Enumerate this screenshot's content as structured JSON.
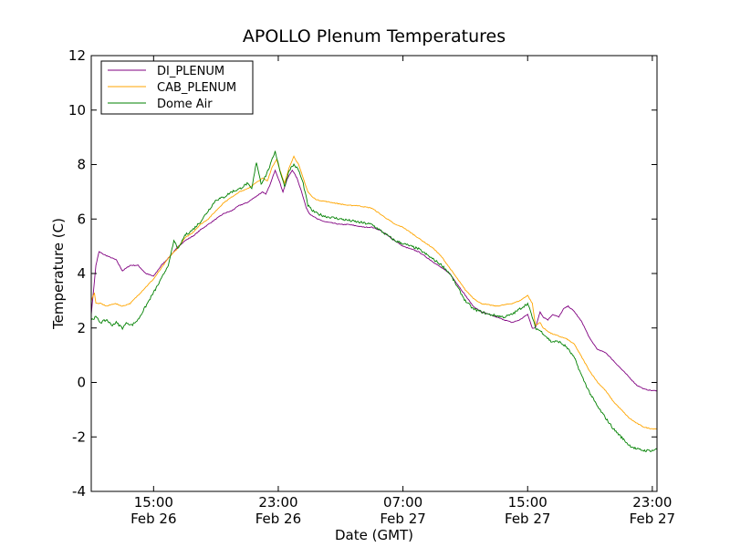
{
  "chart_data": {
    "type": "line",
    "title": "APOLLO Plenum Temperatures",
    "xlabel": "Date (GMT)",
    "ylabel": "Temperature (C)",
    "xlim": [
      11.0,
      47.3
    ],
    "ylim": [
      -4,
      12
    ],
    "yticks": [
      -4,
      -2,
      0,
      2,
      4,
      6,
      8,
      10,
      12
    ],
    "xticks": [
      {
        "x": 15,
        "time": "15:00",
        "date": "Feb 26"
      },
      {
        "x": 23,
        "time": "23:00",
        "date": "Feb 26"
      },
      {
        "x": 31,
        "time": "07:00",
        "date": "Feb 27"
      },
      {
        "x": 39,
        "time": "15:00",
        "date": "Feb 27"
      },
      {
        "x": 47,
        "time": "23:00",
        "date": "Feb 27"
      }
    ],
    "legend_position": "top-left",
    "series": [
      {
        "name": "DI_PLENUM",
        "color": "#800080",
        "points": [
          [
            11.0,
            2.5
          ],
          [
            11.3,
            4.3
          ],
          [
            11.5,
            4.8
          ],
          [
            11.8,
            4.7
          ],
          [
            12.2,
            4.6
          ],
          [
            12.6,
            4.5
          ],
          [
            13.0,
            4.1
          ],
          [
            13.5,
            4.3
          ],
          [
            14.0,
            4.3
          ],
          [
            14.5,
            4.0
          ],
          [
            15.0,
            3.9
          ],
          [
            15.5,
            4.3
          ],
          [
            16.0,
            4.6
          ],
          [
            16.6,
            5.0
          ],
          [
            17.0,
            5.2
          ],
          [
            17.6,
            5.4
          ],
          [
            18.0,
            5.6
          ],
          [
            18.5,
            5.8
          ],
          [
            19.0,
            6.0
          ],
          [
            19.5,
            6.2
          ],
          [
            20.0,
            6.3
          ],
          [
            20.5,
            6.5
          ],
          [
            21.0,
            6.6
          ],
          [
            21.5,
            6.8
          ],
          [
            22.0,
            7.0
          ],
          [
            22.2,
            6.9
          ],
          [
            22.5,
            7.3
          ],
          [
            22.8,
            7.8
          ],
          [
            23.0,
            7.5
          ],
          [
            23.3,
            7.0
          ],
          [
            23.6,
            7.5
          ],
          [
            23.9,
            7.8
          ],
          [
            24.2,
            7.5
          ],
          [
            24.5,
            7.0
          ],
          [
            24.8,
            6.4
          ],
          [
            25.0,
            6.2
          ],
          [
            25.5,
            6.0
          ],
          [
            26.0,
            5.9
          ],
          [
            26.5,
            5.85
          ],
          [
            27.0,
            5.8
          ],
          [
            27.5,
            5.8
          ],
          [
            28.0,
            5.75
          ],
          [
            28.5,
            5.7
          ],
          [
            29.0,
            5.7
          ],
          [
            29.5,
            5.6
          ],
          [
            30.0,
            5.4
          ],
          [
            30.5,
            5.2
          ],
          [
            31.0,
            5.0
          ],
          [
            31.5,
            4.9
          ],
          [
            32.0,
            4.8
          ],
          [
            32.5,
            4.6
          ],
          [
            33.0,
            4.4
          ],
          [
            33.5,
            4.2
          ],
          [
            34.0,
            4.0
          ],
          [
            34.5,
            3.6
          ],
          [
            35.0,
            3.2
          ],
          [
            35.5,
            2.8
          ],
          [
            36.0,
            2.6
          ],
          [
            36.5,
            2.5
          ],
          [
            37.0,
            2.4
          ],
          [
            37.5,
            2.3
          ],
          [
            38.0,
            2.2
          ],
          [
            38.5,
            2.3
          ],
          [
            39.0,
            2.5
          ],
          [
            39.3,
            2.0
          ],
          [
            39.5,
            2.0
          ],
          [
            39.8,
            2.6
          ],
          [
            40.0,
            2.4
          ],
          [
            40.3,
            2.3
          ],
          [
            40.6,
            2.5
          ],
          [
            41.0,
            2.4
          ],
          [
            41.3,
            2.7
          ],
          [
            41.6,
            2.8
          ],
          [
            42.0,
            2.6
          ],
          [
            42.5,
            2.2
          ],
          [
            43.0,
            1.6
          ],
          [
            43.5,
            1.2
          ],
          [
            44.0,
            1.1
          ],
          [
            44.5,
            0.8
          ],
          [
            45.0,
            0.5
          ],
          [
            45.5,
            0.2
          ],
          [
            46.0,
            -0.1
          ],
          [
            46.5,
            -0.25
          ],
          [
            47.0,
            -0.3
          ],
          [
            47.3,
            -0.3
          ]
        ]
      },
      {
        "name": "CAB_PLENUM",
        "color": "#FFA500",
        "points": [
          [
            11.0,
            3.0
          ],
          [
            11.2,
            3.3
          ],
          [
            11.3,
            2.9
          ],
          [
            11.6,
            2.9
          ],
          [
            12.0,
            2.8
          ],
          [
            12.5,
            2.9
          ],
          [
            13.0,
            2.8
          ],
          [
            13.5,
            2.9
          ],
          [
            14.0,
            3.2
          ],
          [
            14.5,
            3.5
          ],
          [
            15.0,
            3.8
          ],
          [
            15.5,
            4.2
          ],
          [
            16.0,
            4.6
          ],
          [
            16.5,
            4.9
          ],
          [
            17.0,
            5.3
          ],
          [
            17.5,
            5.5
          ],
          [
            18.0,
            5.8
          ],
          [
            18.5,
            6.0
          ],
          [
            19.0,
            6.3
          ],
          [
            19.5,
            6.6
          ],
          [
            20.0,
            6.8
          ],
          [
            20.5,
            7.0
          ],
          [
            21.0,
            7.1
          ],
          [
            21.5,
            7.3
          ],
          [
            22.0,
            7.5
          ],
          [
            22.3,
            7.4
          ],
          [
            22.6,
            7.9
          ],
          [
            22.9,
            8.2
          ],
          [
            23.1,
            7.8
          ],
          [
            23.4,
            7.3
          ],
          [
            23.7,
            7.9
          ],
          [
            24.0,
            8.3
          ],
          [
            24.3,
            8.0
          ],
          [
            24.6,
            7.5
          ],
          [
            24.9,
            7.0
          ],
          [
            25.2,
            6.8
          ],
          [
            25.5,
            6.7
          ],
          [
            26.0,
            6.65
          ],
          [
            26.5,
            6.6
          ],
          [
            27.0,
            6.55
          ],
          [
            27.5,
            6.5
          ],
          [
            28.0,
            6.5
          ],
          [
            28.5,
            6.45
          ],
          [
            29.0,
            6.4
          ],
          [
            29.5,
            6.2
          ],
          [
            30.0,
            6.0
          ],
          [
            30.5,
            5.8
          ],
          [
            31.0,
            5.7
          ],
          [
            31.5,
            5.5
          ],
          [
            32.0,
            5.3
          ],
          [
            32.5,
            5.1
          ],
          [
            33.0,
            4.9
          ],
          [
            33.5,
            4.6
          ],
          [
            34.0,
            4.2
          ],
          [
            34.5,
            3.8
          ],
          [
            35.0,
            3.4
          ],
          [
            35.5,
            3.1
          ],
          [
            36.0,
            2.9
          ],
          [
            36.5,
            2.85
          ],
          [
            37.0,
            2.8
          ],
          [
            37.5,
            2.85
          ],
          [
            38.0,
            2.9
          ],
          [
            38.5,
            3.0
          ],
          [
            39.0,
            3.2
          ],
          [
            39.3,
            2.9
          ],
          [
            39.5,
            2.1
          ],
          [
            39.8,
            2.2
          ],
          [
            40.0,
            2.0
          ],
          [
            40.5,
            1.8
          ],
          [
            41.0,
            1.7
          ],
          [
            41.5,
            1.6
          ],
          [
            42.0,
            1.4
          ],
          [
            42.5,
            0.9
          ],
          [
            43.0,
            0.4
          ],
          [
            43.5,
            0.0
          ],
          [
            44.0,
            -0.3
          ],
          [
            44.5,
            -0.7
          ],
          [
            45.0,
            -1.0
          ],
          [
            45.5,
            -1.3
          ],
          [
            46.0,
            -1.5
          ],
          [
            46.5,
            -1.65
          ],
          [
            47.0,
            -1.7
          ],
          [
            47.3,
            -1.7
          ]
        ]
      },
      {
        "name": "Dome Air",
        "color": "#008000",
        "points": [
          [
            11.0,
            2.3
          ],
          [
            11.3,
            2.4
          ],
          [
            11.6,
            2.2
          ],
          [
            12.0,
            2.3
          ],
          [
            12.3,
            2.1
          ],
          [
            12.6,
            2.2
          ],
          [
            13.0,
            2.0
          ],
          [
            13.3,
            2.2
          ],
          [
            13.6,
            2.1
          ],
          [
            14.0,
            2.3
          ],
          [
            14.5,
            2.8
          ],
          [
            15.0,
            3.3
          ],
          [
            15.5,
            3.8
          ],
          [
            16.0,
            4.4
          ],
          [
            16.3,
            5.2
          ],
          [
            16.6,
            4.9
          ],
          [
            17.0,
            5.4
          ],
          [
            17.5,
            5.6
          ],
          [
            18.0,
            5.9
          ],
          [
            18.5,
            6.3
          ],
          [
            19.0,
            6.7
          ],
          [
            19.5,
            6.8
          ],
          [
            20.0,
            7.0
          ],
          [
            20.5,
            7.1
          ],
          [
            21.0,
            7.3
          ],
          [
            21.3,
            7.1
          ],
          [
            21.6,
            8.1
          ],
          [
            21.9,
            7.3
          ],
          [
            22.2,
            7.6
          ],
          [
            22.5,
            8.0
          ],
          [
            22.8,
            8.5
          ],
          [
            23.1,
            7.8
          ],
          [
            23.4,
            7.2
          ],
          [
            23.7,
            7.8
          ],
          [
            24.0,
            8.0
          ],
          [
            24.3,
            7.8
          ],
          [
            24.6,
            7.3
          ],
          [
            24.9,
            6.5
          ],
          [
            25.2,
            6.3
          ],
          [
            25.5,
            6.2
          ],
          [
            26.0,
            6.1
          ],
          [
            26.5,
            6.05
          ],
          [
            27.0,
            6.0
          ],
          [
            27.5,
            5.95
          ],
          [
            28.0,
            5.9
          ],
          [
            28.5,
            5.85
          ],
          [
            29.0,
            5.8
          ],
          [
            29.5,
            5.6
          ],
          [
            30.0,
            5.4
          ],
          [
            30.5,
            5.2
          ],
          [
            31.0,
            5.1
          ],
          [
            31.5,
            5.0
          ],
          [
            32.0,
            4.9
          ],
          [
            32.5,
            4.7
          ],
          [
            33.0,
            4.5
          ],
          [
            33.5,
            4.3
          ],
          [
            34.0,
            4.0
          ],
          [
            34.5,
            3.5
          ],
          [
            35.0,
            3.0
          ],
          [
            35.5,
            2.7
          ],
          [
            36.0,
            2.6
          ],
          [
            36.5,
            2.5
          ],
          [
            37.0,
            2.45
          ],
          [
            37.5,
            2.4
          ],
          [
            38.0,
            2.5
          ],
          [
            38.5,
            2.7
          ],
          [
            39.0,
            2.9
          ],
          [
            39.3,
            2.4
          ],
          [
            39.5,
            2.0
          ],
          [
            39.8,
            1.9
          ],
          [
            40.0,
            1.8
          ],
          [
            40.5,
            1.5
          ],
          [
            41.0,
            1.5
          ],
          [
            41.5,
            1.3
          ],
          [
            42.0,
            0.9
          ],
          [
            42.5,
            0.2
          ],
          [
            43.0,
            -0.4
          ],
          [
            43.5,
            -0.9
          ],
          [
            44.0,
            -1.3
          ],
          [
            44.5,
            -1.7
          ],
          [
            45.0,
            -2.0
          ],
          [
            45.5,
            -2.3
          ],
          [
            46.0,
            -2.45
          ],
          [
            46.5,
            -2.5
          ],
          [
            47.0,
            -2.5
          ],
          [
            47.3,
            -2.45
          ]
        ]
      }
    ]
  }
}
